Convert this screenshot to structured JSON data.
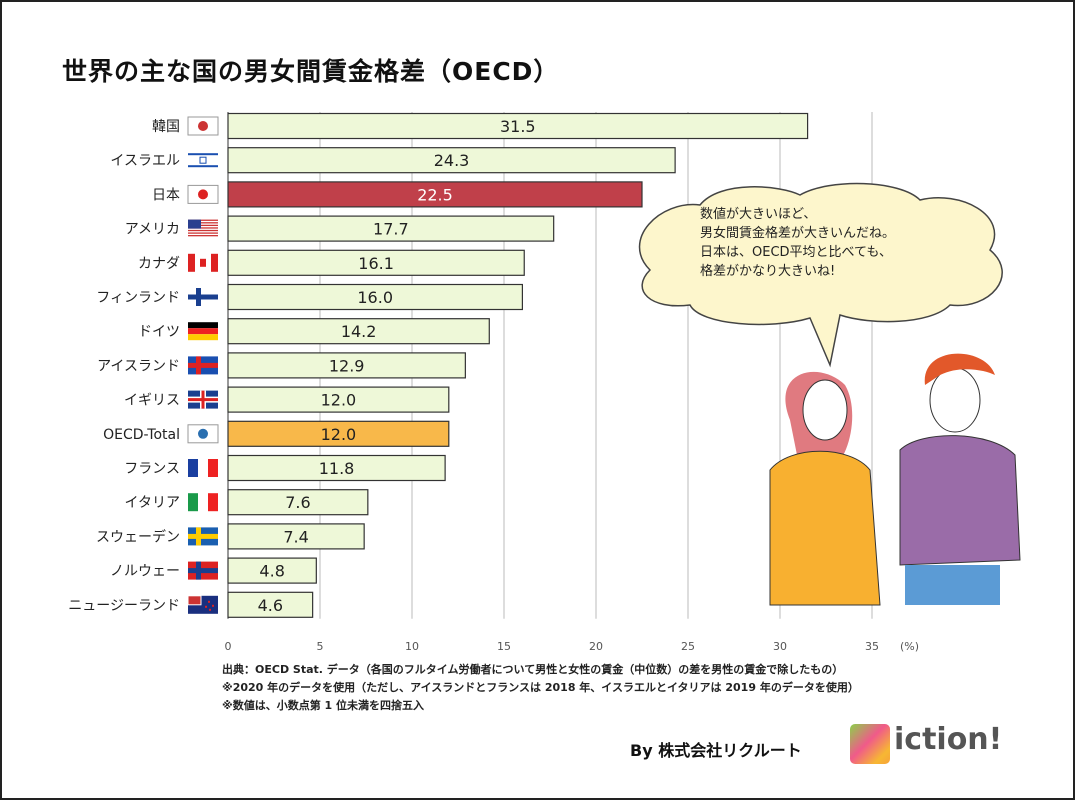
{
  "chart_data": {
    "type": "bar",
    "orientation": "horizontal",
    "title": "世界の主な国の男女間賃金格差（OECD）",
    "categories": [
      "韓国",
      "イスラエル",
      "日本",
      "アメリカ",
      "カナダ",
      "フィンランド",
      "ドイツ",
      "アイスランド",
      "イギリス",
      "OECD-Total",
      "フランス",
      "イタリア",
      "スウェーデン",
      "ノルウェー",
      "ニュージーランド"
    ],
    "flags": [
      "korea-flag-icon",
      "israel-flag-icon",
      "japan-flag-icon",
      "usa-flag-icon",
      "canada-flag-icon",
      "finland-flag-icon",
      "germany-flag-icon",
      "iceland-flag-icon",
      "uk-flag-icon",
      "oecd-logo-icon",
      "france-flag-icon",
      "italy-flag-icon",
      "sweden-flag-icon",
      "norway-flag-icon",
      "new-zealand-flag-icon"
    ],
    "values": [
      31.5,
      24.3,
      22.5,
      17.7,
      16.1,
      16.0,
      14.2,
      12.9,
      12.0,
      12.0,
      11.8,
      7.6,
      7.4,
      4.8,
      4.6
    ],
    "labels": [
      "31.5",
      "24.3",
      "22.5",
      "17.7",
      "16.1",
      "16.0",
      "14.2",
      "12.9",
      "12.0",
      "12.0",
      "11.8",
      "7.6",
      "7.4",
      "4.8",
      "4.6"
    ],
    "highlight": {
      "日本": "#c0404a",
      "OECD-Total": "#f8b84a"
    },
    "bar_color": "#eef8d8",
    "xlim": [
      0,
      35
    ],
    "xticks": [
      "0",
      "5",
      "10",
      "15",
      "20",
      "25",
      "30",
      "35"
    ],
    "xunit": "(%)",
    "grid": true
  },
  "notes": [
    "出典：OECD Stat. データ（各国のフルタイム労働者について男性と女性の賃金（中位数）の差を男性の賃金で除したもの）",
    "※2020 年のデータを使用（ただし、アイスランドとフランスは 2018 年、イスラエルとイタリアは 2019 年のデータを使用）",
    "※数値は、小数点第 1 位未満を四捨五入"
  ],
  "speech": [
    "数値が大きいほど、",
    "男女間賃金格差が大きいんだね。",
    "日本は、OECD平均と比べても、",
    "格差がかなり大きいね!"
  ],
  "credit": "By 株式会社リクルート",
  "logo_text": "iction!"
}
